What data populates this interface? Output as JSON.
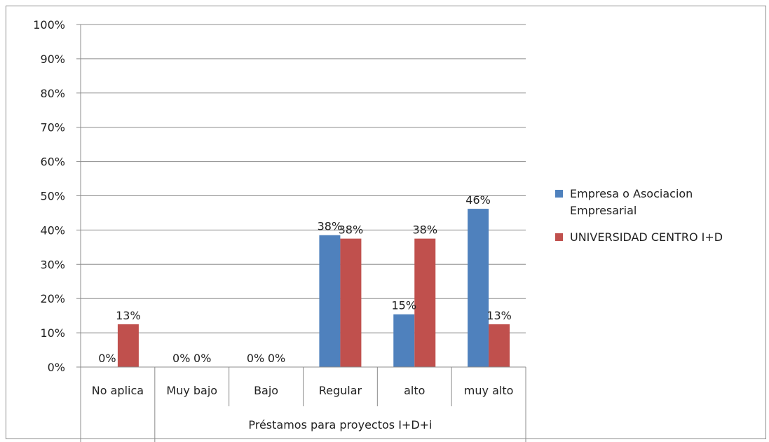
{
  "chart_data": {
    "type": "bar",
    "categories": [
      "No aplica",
      "Muy bajo",
      "Bajo",
      "Regular",
      "alto",
      "muy alto"
    ],
    "group_label": "Préstamos para proyectos I+D+i",
    "group_categories": [
      "Muy bajo",
      "Bajo",
      "Regular",
      "alto",
      "muy alto"
    ],
    "series": [
      {
        "name_lines": [
          "Empresa o Asociacion",
          "Empresarial"
        ],
        "color": "#4F81BD",
        "values": [
          0,
          0,
          0,
          38.5,
          15.4,
          46.2
        ],
        "labels": [
          "0%",
          "0%",
          "0%",
          "38%",
          "15%",
          "46%"
        ]
      },
      {
        "name_lines": [
          "UNIVERSIDAD CENTRO I+D"
        ],
        "color": "#C0504D",
        "values": [
          12.5,
          0,
          0,
          37.5,
          37.5,
          12.5
        ],
        "labels": [
          "13%",
          "0%",
          "0%",
          "38%",
          "38%",
          "13%"
        ]
      }
    ],
    "y_ticks": [
      "0%",
      "10%",
      "20%",
      "30%",
      "40%",
      "50%",
      "60%",
      "70%",
      "80%",
      "90%",
      "100%"
    ],
    "ylim": [
      0,
      100
    ],
    "grid": true,
    "legend": "right"
  }
}
